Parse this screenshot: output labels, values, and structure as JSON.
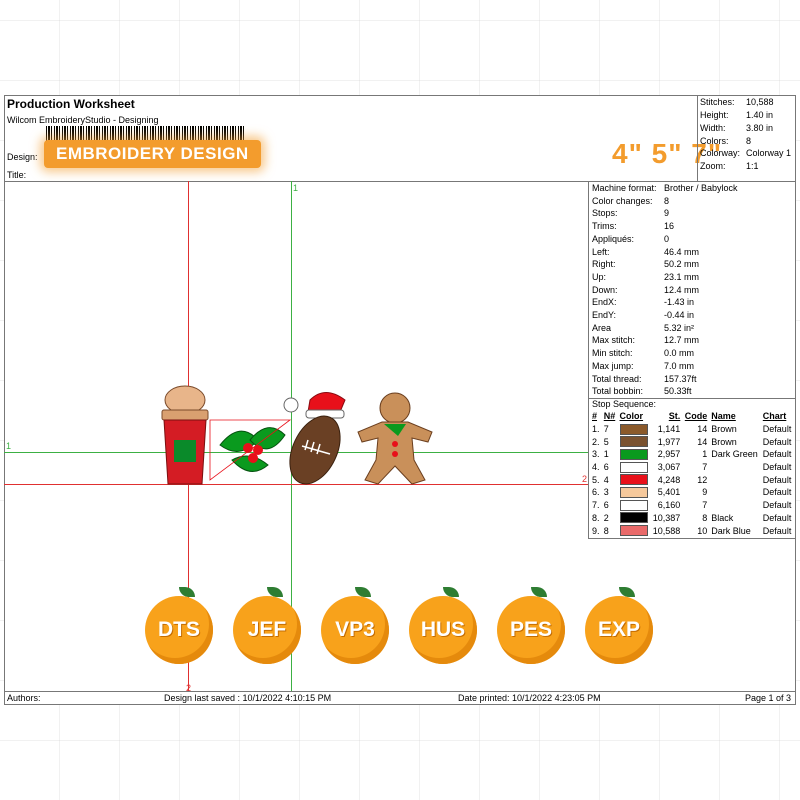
{
  "header": {
    "title": "Production Worksheet",
    "subtitle": "Wilcom EmbroideryStudio - Designing",
    "design_label": "Design:",
    "title_label": "Title:",
    "badge": "EMBROIDERY DESIGN",
    "sizes": "4\" 5\" 7\""
  },
  "stats": [
    {
      "label": "Stitches:",
      "value": "10,588"
    },
    {
      "label": "Height:",
      "value": "1.40 in"
    },
    {
      "label": "Width:",
      "value": "3.80 in"
    },
    {
      "label": "Colors:",
      "value": "8"
    },
    {
      "label": "Colorway:",
      "value": "Colorway 1"
    },
    {
      "label": "Zoom:",
      "value": "1:1"
    }
  ],
  "properties": [
    {
      "label": "Machine format:",
      "value": "Brother / Babylock"
    },
    {
      "label": "Color changes:",
      "value": "8"
    },
    {
      "label": "Stops:",
      "value": "9"
    },
    {
      "label": "Trims:",
      "value": "16"
    },
    {
      "label": "Appliqués:",
      "value": "0"
    },
    {
      "label": "Left:",
      "value": "46.4 mm"
    },
    {
      "label": "Right:",
      "value": "50.2 mm"
    },
    {
      "label": "Up:",
      "value": "23.1 mm"
    },
    {
      "label": "Down:",
      "value": "12.4 mm"
    },
    {
      "label": "EndX:",
      "value": "-1.43 in"
    },
    {
      "label": "EndY:",
      "value": "-0.44 in"
    },
    {
      "label": "Area",
      "value": "5.32 in²"
    },
    {
      "label": "Max stitch:",
      "value": "12.7 mm"
    },
    {
      "label": "Min stitch:",
      "value": "0.0 mm"
    },
    {
      "label": "Max jump:",
      "value": "7.0 mm"
    },
    {
      "label": "Total thread:",
      "value": "157.37ft"
    },
    {
      "label": "Total bobbin:",
      "value": "50.33ft"
    }
  ],
  "sequence": {
    "title": "Stop Sequence:",
    "headers": [
      "#",
      "N#",
      "Color",
      "St.",
      "Code",
      "Name",
      "Chart"
    ],
    "rows": [
      {
        "n": "1.",
        "nn": "7",
        "color": "#8b5a2b",
        "st": "1,141",
        "code": "14",
        "name": "Brown",
        "chart": "Default"
      },
      {
        "n": "2.",
        "nn": "5",
        "color": "#7a5230",
        "st": "1,977",
        "code": "14",
        "name": "Brown",
        "chart": "Default"
      },
      {
        "n": "3.",
        "nn": "1",
        "color": "#0a9a1e",
        "st": "2,957",
        "code": "1",
        "name": "Dark Green",
        "chart": "Default"
      },
      {
        "n": "4.",
        "nn": "6",
        "color": "#ffffff",
        "st": "3,067",
        "code": "7",
        "name": "",
        "chart": "Default"
      },
      {
        "n": "5.",
        "nn": "4",
        "color": "#e8101a",
        "st": "4,248",
        "code": "12",
        "name": "",
        "chart": "Default"
      },
      {
        "n": "6.",
        "nn": "3",
        "color": "#f6c99c",
        "st": "5,401",
        "code": "9",
        "name": "",
        "chart": "Default"
      },
      {
        "n": "7.",
        "nn": "6",
        "color": "#ffffff",
        "st": "6,160",
        "code": "7",
        "name": "",
        "chart": "Default"
      },
      {
        "n": "8.",
        "nn": "2",
        "color": "#000000",
        "st": "10,387",
        "code": "8",
        "name": "Black",
        "chart": "Default"
      },
      {
        "n": "9.",
        "nn": "8",
        "color": "#e96a6a",
        "st": "10,588",
        "code": "10",
        "name": "Dark Blue",
        "chart": "Default"
      }
    ]
  },
  "canvas": {
    "marker_1_top": "1",
    "marker_1_left": "1",
    "marker_2_right": "2",
    "marker_2_bottom": "2"
  },
  "formats": [
    "DTS",
    "JEF",
    "VP3",
    "HUS",
    "PES",
    "EXP"
  ],
  "footer": {
    "authors": "Authors:",
    "saved": "Design last saved : 10/1/2022 4:10:15 PM",
    "printed": "Date printed: 10/1/2022 4:23:05 PM",
    "page": "Page 1 of 3"
  },
  "colors": {
    "accent": "#f39c2d",
    "orange": "#f8a21b",
    "guide_red": "#e03030",
    "guide_green": "#3cb043"
  }
}
